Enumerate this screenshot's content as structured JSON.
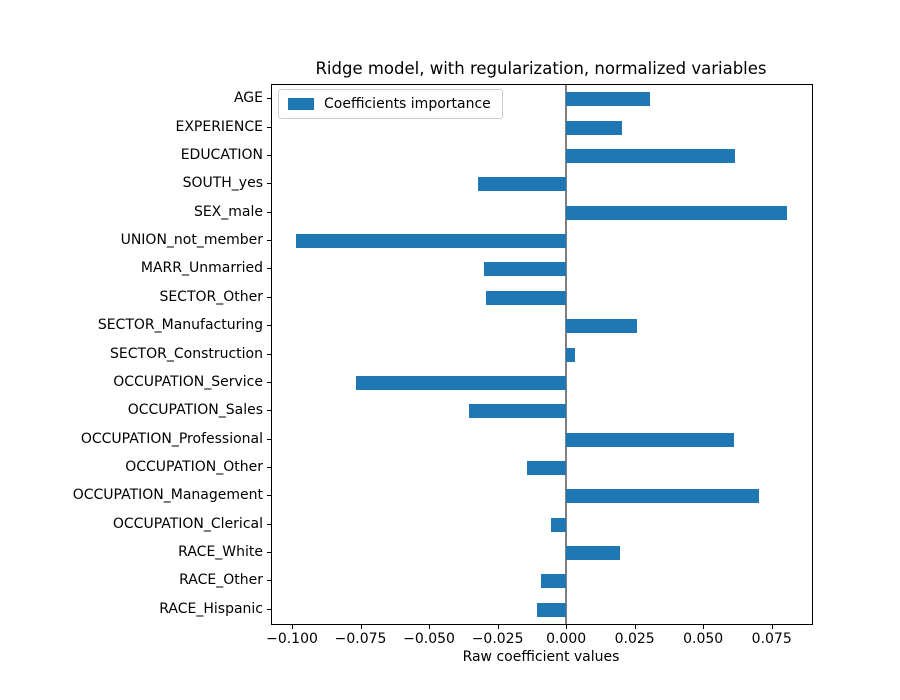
{
  "figure": {
    "title": "Ridge model, with regularization, normalized variables",
    "xlabel": "Raw coefficient values",
    "legend_label": "Coefficients importance",
    "colors": {
      "bar": "#1f77b4",
      "zero_line": "#808080",
      "spine": "#000000",
      "legend_border": "#cccccc"
    }
  },
  "chart_data": {
    "type": "bar",
    "orientation": "horizontal",
    "title": "Ridge model, with regularization, normalized variables",
    "xlabel": "Raw coefficient values",
    "ylabel": "",
    "legend": [
      "Coefficients importance"
    ],
    "legend_position": "upper left",
    "grid": false,
    "zero_line": true,
    "categories": [
      "AGE",
      "EXPERIENCE",
      "EDUCATION",
      "SOUTH_yes",
      "SEX_male",
      "UNION_not_member",
      "MARR_Unmarried",
      "SECTOR_Other",
      "SECTOR_Manufacturing",
      "SECTOR_Construction",
      "OCCUPATION_Service",
      "OCCUPATION_Sales",
      "OCCUPATION_Professional",
      "OCCUPATION_Other",
      "OCCUPATION_Management",
      "OCCUPATION_Clerical",
      "RACE_White",
      "RACE_Other",
      "RACE_Hispanic"
    ],
    "values": [
      0.0305,
      0.0203,
      0.0617,
      -0.0321,
      0.0805,
      -0.0986,
      -0.03,
      -0.0291,
      0.0258,
      0.0032,
      -0.0766,
      -0.0353,
      0.0611,
      -0.0141,
      0.0702,
      -0.0055,
      0.0197,
      -0.0092,
      -0.0106
    ],
    "xlim": [
      -0.1073,
      0.0897
    ],
    "xticks": [
      -0.1,
      -0.075,
      -0.05,
      -0.025,
      0.0,
      0.025,
      0.05,
      0.075
    ],
    "xtick_labels": [
      "−0.100",
      "−0.075",
      "−0.050",
      "−0.025",
      "0.000",
      "0.025",
      "0.050",
      "0.075"
    ]
  }
}
